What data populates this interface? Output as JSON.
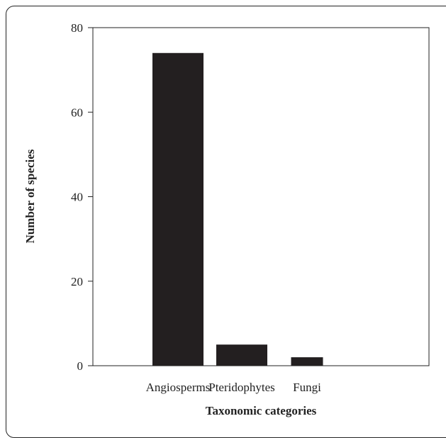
{
  "chart_data": {
    "type": "bar",
    "categories": [
      "Angiosperms",
      "Pteridophytes",
      "Fungi"
    ],
    "values": [
      74,
      5,
      2
    ],
    "xlabel": "Taxonomic categories",
    "ylabel": "Number of species",
    "ylim": [
      0,
      80
    ],
    "yticks": [
      "0",
      "20",
      "40",
      "60",
      "80"
    ],
    "bar_color": "#231f20",
    "grid": false
  }
}
